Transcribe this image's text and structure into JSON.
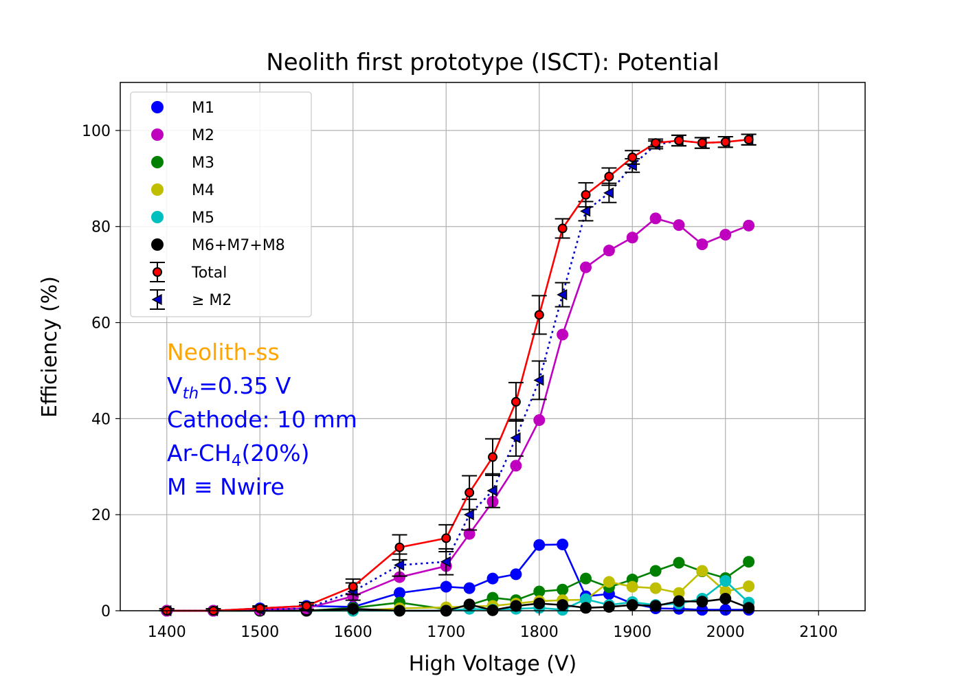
{
  "chart_data": {
    "type": "line",
    "title": "Neolith first prototype (ISCT): Potential",
    "xlabel": "High Voltage (V)",
    "ylabel": "Efficiency (%)",
    "xlim": [
      1350,
      2150
    ],
    "ylim": [
      0,
      110
    ],
    "xticks": [
      1400,
      1500,
      1600,
      1700,
      1800,
      1900,
      2000,
      2100
    ],
    "yticks": [
      0,
      20,
      40,
      60,
      80,
      100
    ],
    "grid": true,
    "legend_position": "top-left",
    "x": [
      1400,
      1450,
      1500,
      1550,
      1600,
      1650,
      1700,
      1725,
      1750,
      1775,
      1800,
      1825,
      1850,
      1875,
      1900,
      1925,
      1950,
      1975,
      2000,
      2025
    ],
    "series": [
      {
        "name": "M1",
        "color": "#0000ff",
        "marker": "circle",
        "values": [
          0,
          0,
          0.5,
          1.0,
          0.8,
          3.7,
          5.0,
          4.7,
          6.7,
          7.6,
          13.7,
          13.8,
          3.0,
          3.5,
          1.5,
          0.5,
          0.4,
          0.2,
          0.2,
          0.2
        ]
      },
      {
        "name": "M2",
        "color": "#bf00bf",
        "marker": "circle",
        "values": [
          0,
          0,
          0.2,
          0.5,
          3.0,
          7.0,
          9.3,
          16.0,
          22.7,
          30.2,
          39.7,
          57.5,
          71.5,
          75.0,
          77.7,
          81.7,
          80.3,
          76.3,
          78.3,
          80.2
        ]
      },
      {
        "name": "M3",
        "color": "#008000",
        "marker": "circle",
        "values": [
          0,
          0,
          0,
          0,
          0.6,
          1.7,
          0.3,
          1.2,
          2.7,
          2.2,
          4.0,
          4.4,
          6.7,
          4.9,
          6.5,
          8.3,
          10.0,
          8.2,
          6.8,
          10.2
        ]
      },
      {
        "name": "M4",
        "color": "#bfbf00",
        "marker": "circle",
        "values": [
          0,
          0,
          0,
          0,
          0,
          0.5,
          0.7,
          0.9,
          1.0,
          1.5,
          2.0,
          2.2,
          2.3,
          6.0,
          5.0,
          4.7,
          3.7,
          8.3,
          4.0,
          5.1
        ]
      },
      {
        "name": "M5",
        "color": "#00bfbf",
        "marker": "circle",
        "values": [
          0,
          0,
          0,
          0,
          0,
          0,
          0,
          0.4,
          0.2,
          0.4,
          0.6,
          0.2,
          2.4,
          1.2,
          1.8,
          1.2,
          1.5,
          2.5,
          6.2,
          1.7
        ]
      },
      {
        "name": "M6+M7+M8",
        "color": "#000000",
        "marker": "circle",
        "values": [
          0,
          0,
          0,
          0,
          0.4,
          0,
          0,
          1.3,
          0.1,
          1.0,
          1.5,
          1.2,
          0.6,
          0.8,
          1.2,
          1.0,
          2.0,
          1.9,
          2.5,
          0.6
        ]
      },
      {
        "name": "Total",
        "color": "#ff0000",
        "marker": "circle-errorbar",
        "face": "#ff0000",
        "values": [
          0,
          0,
          0.5,
          1.0,
          5.0,
          13.2,
          15.1,
          24.6,
          32.0,
          43.5,
          61.6,
          79.6,
          86.6,
          90.4,
          94.4,
          97.4,
          97.9,
          97.4,
          97.6,
          98.1
        ],
        "errors": [
          0.4,
          0.4,
          0.5,
          0.7,
          1.6,
          2.6,
          2.8,
          3.5,
          3.8,
          4.0,
          4.0,
          2.0,
          2.5,
          1.8,
          1.4,
          0.8,
          1.1,
          1.1,
          1.1,
          1.1
        ]
      },
      {
        "name": "≥ M2",
        "color": "#0000cc",
        "marker": "triangle-left-errorbar",
        "values": [
          0,
          0,
          0.2,
          0.5,
          4.0,
          9.5,
          10.2,
          20.0,
          25.0,
          36.0,
          48.0,
          65.8,
          83.2,
          87.0,
          92.7,
          97.0,
          97.9,
          97.4,
          97.6,
          98.1
        ],
        "errors": [
          0.4,
          0.4,
          0.5,
          0.7,
          1.8,
          2.3,
          2.7,
          3.2,
          3.5,
          3.8,
          4.0,
          2.5,
          2.0,
          2.0,
          1.4,
          0.8,
          1.1,
          1.1,
          1.1,
          1.1
        ]
      }
    ],
    "annotations": [
      {
        "text": "Neolith-ss",
        "color": "#ffa500"
      },
      {
        "text": "V",
        "sub": "th",
        "suffix": "=0.35 V",
        "color": "#0000ff"
      },
      {
        "text": "Cathode: 10 mm",
        "color": "#0000ff"
      },
      {
        "text": "Ar-CH",
        "sub": "4",
        "suffix": "(20%)",
        "color": "#0000ff"
      },
      {
        "text": "M ≡ Nwire",
        "color": "#0000ff"
      }
    ]
  }
}
